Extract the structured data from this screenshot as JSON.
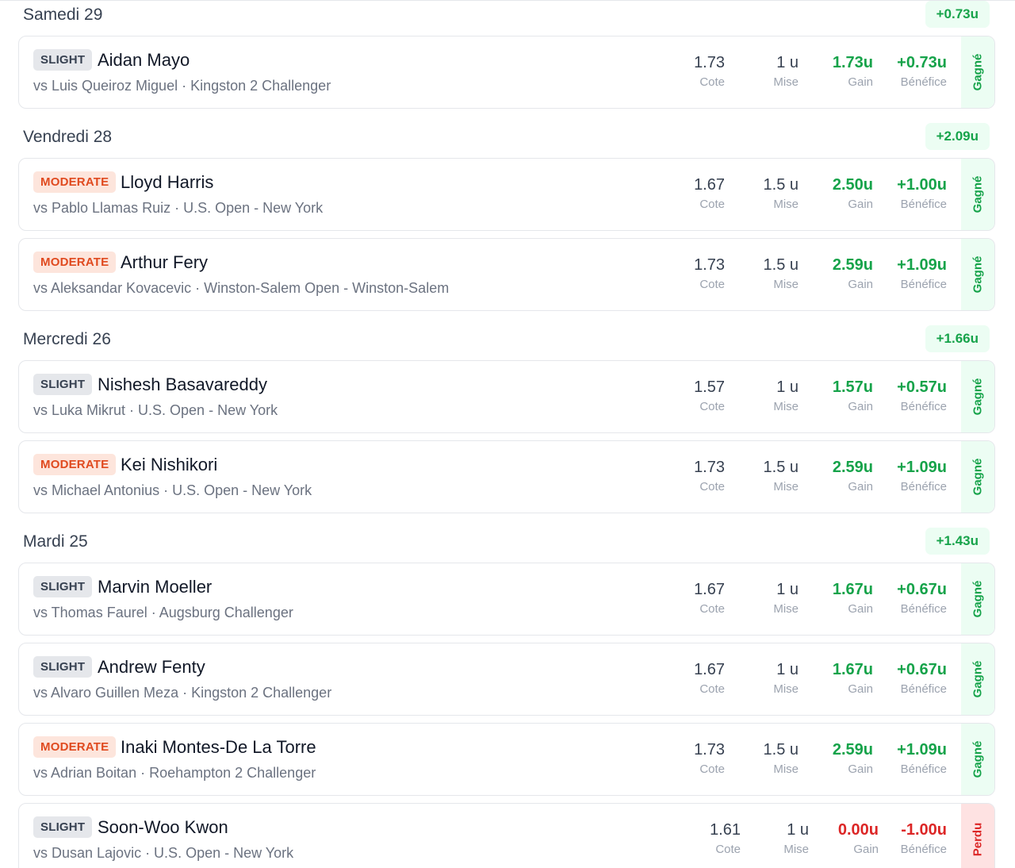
{
  "labels": {
    "cote": "Cote",
    "mise": "Mise",
    "gain": "Gain",
    "benefice": "Bénéfice"
  },
  "days": [
    {
      "title": "Samedi 29",
      "total": "+0.73u",
      "bets": [
        {
          "level": "SLIGHT",
          "player": "Aidan Mayo",
          "sub": "vs Luis Queiroz Miguel · Kingston 2 Challenger",
          "cote": "1.73",
          "mise": "1 u",
          "gain": "1.73u",
          "benefice": "+0.73u",
          "result": "Gagné"
        }
      ]
    },
    {
      "title": "Vendredi 28",
      "total": "+2.09u",
      "bets": [
        {
          "level": "MODERATE",
          "player": "Lloyd Harris",
          "sub": "vs Pablo Llamas Ruiz · U.S. Open - New York",
          "cote": "1.67",
          "mise": "1.5 u",
          "gain": "2.50u",
          "benefice": "+1.00u",
          "result": "Gagné"
        },
        {
          "level": "MODERATE",
          "player": "Arthur Fery",
          "sub": "vs Aleksandar Kovacevic · Winston-Salem Open - Winston-Salem",
          "cote": "1.73",
          "mise": "1.5 u",
          "gain": "2.59u",
          "benefice": "+1.09u",
          "result": "Gagné"
        }
      ]
    },
    {
      "title": "Mercredi 26",
      "total": "+1.66u",
      "bets": [
        {
          "level": "SLIGHT",
          "player": "Nishesh Basavareddy",
          "sub": "vs Luka Mikrut · U.S. Open - New York",
          "cote": "1.57",
          "mise": "1 u",
          "gain": "1.57u",
          "benefice": "+0.57u",
          "result": "Gagné"
        },
        {
          "level": "MODERATE",
          "player": "Kei Nishikori",
          "sub": "vs Michael Antonius · U.S. Open - New York",
          "cote": "1.73",
          "mise": "1.5 u",
          "gain": "2.59u",
          "benefice": "+1.09u",
          "result": "Gagné"
        }
      ]
    },
    {
      "title": "Mardi 25",
      "total": "+1.43u",
      "bets": [
        {
          "level": "SLIGHT",
          "player": "Marvin Moeller",
          "sub": "vs Thomas Faurel · Augsburg Challenger",
          "cote": "1.67",
          "mise": "1 u",
          "gain": "1.67u",
          "benefice": "+0.67u",
          "result": "Gagné"
        },
        {
          "level": "SLIGHT",
          "player": "Andrew Fenty",
          "sub": "vs Alvaro Guillen Meza · Kingston 2 Challenger",
          "cote": "1.67",
          "mise": "1 u",
          "gain": "1.67u",
          "benefice": "+0.67u",
          "result": "Gagné"
        },
        {
          "level": "MODERATE",
          "player": "Inaki Montes-De La Torre",
          "sub": "vs Adrian Boitan · Roehampton 2 Challenger",
          "cote": "1.73",
          "mise": "1.5 u",
          "gain": "2.59u",
          "benefice": "+1.09u",
          "result": "Gagné"
        },
        {
          "level": "SLIGHT",
          "player": "Soon-Woo Kwon",
          "sub": "vs Dusan Lajovic · U.S. Open - New York",
          "cote": "1.61",
          "mise": "1 u",
          "gain": "0.00u",
          "benefice": "-1.00u",
          "result": "Perdu"
        }
      ]
    }
  ]
}
